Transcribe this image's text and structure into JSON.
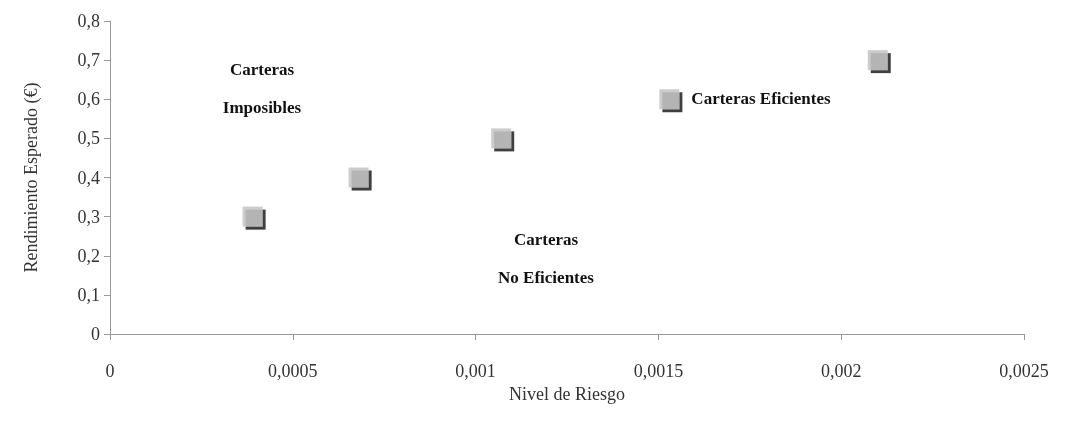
{
  "chart_data": {
    "type": "scatter",
    "xlabel": "Nivel de Riesgo",
    "ylabel": "Rendimiento Esperado (€)",
    "x": [
      0.00039,
      0.00068,
      0.00107,
      0.00153,
      0.0021
    ],
    "values": [
      0.3,
      0.4,
      0.5,
      0.6,
      0.7
    ],
    "color": "#bfbfbf",
    "marker": "square",
    "grid": false,
    "xlim": [
      0,
      0.0025
    ],
    "ylim": [
      0,
      0.8
    ],
    "xticks": [
      0,
      {
        "value": 0.0005,
        "label": "0,0005"
      },
      {
        "value": 0.001,
        "label": "0,001"
      },
      {
        "value": 0.0015,
        "label": "0,0015"
      },
      {
        "value": 0.002,
        "label": "0,002"
      },
      {
        "value": 0.0025,
        "label": "0,0025"
      }
    ],
    "yticks": [
      0,
      {
        "value": 0.1,
        "label": "0,1"
      },
      {
        "value": 0.2,
        "label": "0,2"
      },
      {
        "value": 0.3,
        "label": "0,3"
      },
      {
        "value": 0.4,
        "label": "0,4"
      },
      {
        "value": 0.5,
        "label": "0,5"
      },
      {
        "value": 0.6,
        "label": "0,6"
      },
      {
        "value": 0.7,
        "label": "0,7"
      },
      {
        "value": 0.8,
        "label": "0,8"
      }
    ],
    "annotations": [
      "Carteras\nImposibles",
      "Carteras\nNo Eficientes",
      {
        "text": "Carteras Eficientes",
        "x": 0.00153,
        "y": 0.6
      }
    ]
  }
}
